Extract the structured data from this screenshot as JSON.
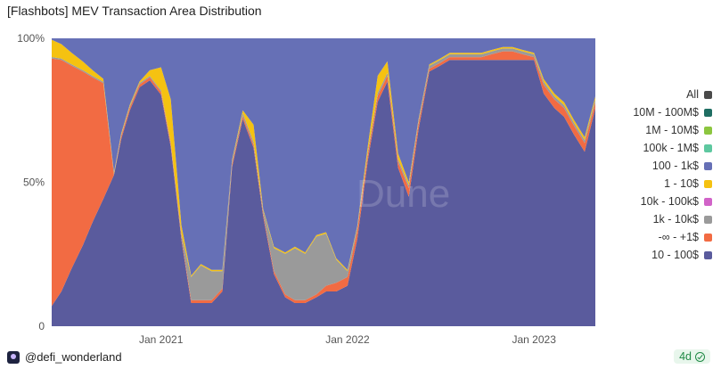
{
  "chart_data": {
    "type": "area",
    "stacked": true,
    "normalized": true,
    "title": "[Flashbots] MEV Transaction Area Distribution",
    "xlabel": "",
    "ylabel": "",
    "x_ticks": [
      "Jan 2021",
      "Jan 2022",
      "Jan 2023"
    ],
    "y_ticks": [
      "0",
      "50%",
      "100%"
    ],
    "ylim": [
      0,
      100
    ],
    "legend_position": "right",
    "x": [
      "2020-06-01",
      "2020-06-20",
      "2020-07-10",
      "2020-08-01",
      "2020-08-20",
      "2020-09-10",
      "2020-10-01",
      "2020-10-15",
      "2020-11-01",
      "2020-11-20",
      "2020-12-10",
      "2021-01-01",
      "2021-01-20",
      "2021-02-10",
      "2021-03-01",
      "2021-03-20",
      "2021-04-10",
      "2021-05-01",
      "2021-05-20",
      "2021-06-10",
      "2021-07-01",
      "2021-07-20",
      "2021-08-10",
      "2021-09-01",
      "2021-09-20",
      "2021-10-10",
      "2021-11-01",
      "2021-11-20",
      "2021-12-10",
      "2022-01-01",
      "2022-01-20",
      "2022-02-10",
      "2022-03-01",
      "2022-03-20",
      "2022-04-10",
      "2022-05-01",
      "2022-05-20",
      "2022-06-10",
      "2022-07-01",
      "2022-07-20",
      "2022-08-10",
      "2022-09-01",
      "2022-09-20",
      "2022-10-10",
      "2022-11-01",
      "2022-11-20",
      "2022-12-10",
      "2023-01-01",
      "2023-01-20",
      "2023-02-10",
      "2023-03-01",
      "2023-03-20",
      "2023-04-10",
      "2023-05-01"
    ],
    "series": [
      {
        "name": "10 - 100$",
        "color": "#5a5b9d",
        "values": [
          7,
          12,
          20,
          28,
          36,
          44,
          52,
          65,
          75,
          83,
          85,
          80,
          62,
          30,
          8,
          8,
          8,
          12,
          55,
          72,
          62,
          38,
          18,
          10,
          8,
          8,
          10,
          12,
          12,
          14,
          30,
          58,
          78,
          85,
          55,
          45,
          68,
          88,
          90,
          92,
          92,
          92,
          92,
          92,
          92,
          92,
          92,
          92,
          80,
          75,
          72,
          66,
          60,
          75
        ]
      },
      {
        "name": "-∞ - +1$",
        "color": "#f26b43",
        "values": [
          86,
          80,
          70,
          60,
          50,
          40,
          0,
          1,
          1,
          1,
          1,
          1,
          1,
          1,
          1,
          1,
          1,
          1,
          1,
          1,
          1,
          1,
          1,
          1,
          1,
          1,
          1,
          2,
          3,
          3,
          3,
          2,
          2,
          2,
          2,
          3,
          2,
          1,
          1,
          1,
          1,
          1,
          1,
          2,
          3,
          3,
          2,
          1,
          3,
          3,
          3,
          3,
          3,
          2
        ]
      },
      {
        "name": "1k - 10k$",
        "color": "#9a9a9a",
        "values": [
          0.5,
          0.5,
          0.5,
          0.5,
          0.5,
          0.5,
          0.5,
          0.5,
          0.5,
          0.5,
          0.5,
          0.5,
          0.5,
          1,
          8,
          12,
          10,
          6,
          1,
          1,
          1,
          1,
          8,
          14,
          18,
          16,
          20,
          18,
          8,
          2,
          1,
          1,
          1,
          1,
          1,
          1,
          1,
          1,
          1,
          1,
          1,
          1,
          1,
          1,
          1,
          1,
          1,
          1,
          1,
          1,
          1,
          1,
          1,
          1
        ]
      },
      {
        "name": "1 - 10$",
        "color": "#f5c211",
        "values": [
          6,
          5,
          4,
          3,
          2,
          1,
          0.5,
          0.5,
          0.5,
          0.5,
          2,
          8,
          15,
          3,
          0.5,
          0.5,
          0.5,
          0.5,
          0.5,
          1,
          6,
          0.5,
          0.5,
          0.5,
          0.5,
          0.5,
          0.5,
          0.5,
          0.5,
          0.5,
          0.5,
          2,
          6,
          4,
          2,
          1,
          0.5,
          0.5,
          0.5,
          0.5,
          0.5,
          0.5,
          0.5,
          0.5,
          0.5,
          0.5,
          0.5,
          0.5,
          1,
          1,
          1,
          1,
          1,
          1
        ]
      },
      {
        "name": "100 - 1k$",
        "color": "#6670b6",
        "values": [
          0.5,
          2,
          5,
          8,
          11,
          14,
          46,
          33,
          23,
          15,
          11,
          10,
          21,
          65,
          82,
          78,
          80,
          80,
          42,
          25,
          30,
          59,
          72,
          74,
          72,
          74,
          68,
          67,
          76,
          80,
          65,
          37,
          13,
          8,
          40,
          50,
          28,
          9,
          7,
          5,
          5,
          5,
          5,
          4,
          3,
          3,
          4,
          5,
          14,
          19,
          22,
          28,
          34,
          20
        ]
      },
      {
        "name": "10k - 100k$",
        "color": "#d163c8",
        "values": [
          0,
          0,
          0,
          0,
          0,
          0,
          0,
          0,
          0,
          0,
          0,
          0,
          0,
          0,
          0,
          0,
          0,
          0,
          0,
          0,
          0,
          0,
          0,
          0,
          0,
          0,
          0,
          0,
          0,
          0,
          0,
          0,
          0,
          0,
          0,
          0,
          0,
          0,
          0,
          0,
          0,
          0,
          0,
          0,
          0,
          0,
          0,
          0,
          0,
          0,
          0,
          0,
          0,
          0
        ]
      },
      {
        "name": "100k - 1M$",
        "color": "#5ec8a0",
        "values": [
          0,
          0,
          0,
          0,
          0,
          0,
          0,
          0,
          0,
          0,
          0,
          0,
          0,
          0,
          0,
          0,
          0,
          0,
          0,
          0,
          0,
          0,
          0,
          0,
          0,
          0,
          0,
          0,
          0,
          0,
          0,
          0,
          0,
          0,
          0,
          0,
          0,
          0,
          0,
          0,
          0,
          0,
          0,
          0,
          0,
          0,
          0,
          0,
          0,
          0,
          0,
          0,
          0,
          0
        ]
      },
      {
        "name": "1M - 10M$",
        "color": "#8cc63f",
        "values": [
          0,
          0,
          0,
          0,
          0,
          0,
          0,
          0,
          0,
          0,
          0,
          0,
          0,
          0,
          0,
          0,
          0,
          0,
          0,
          0,
          0,
          0,
          0,
          0,
          0,
          0,
          0,
          0,
          0,
          0,
          0,
          0,
          0,
          0,
          0,
          0,
          0,
          0,
          0,
          0,
          0,
          0,
          0,
          0,
          0,
          0,
          0,
          0,
          0,
          0,
          0,
          0,
          0,
          0
        ]
      },
      {
        "name": "10M - 100M$",
        "color": "#1f6e63",
        "values": [
          0,
          0,
          0,
          0,
          0,
          0,
          0,
          0,
          0,
          0,
          0,
          0,
          0,
          0,
          0,
          0,
          0,
          0,
          0,
          0,
          0,
          0,
          0,
          0,
          0,
          0,
          0,
          0,
          0,
          0,
          0,
          0,
          0,
          0,
          0,
          0,
          0,
          0,
          0,
          0,
          0,
          0,
          0,
          0,
          0,
          0,
          0,
          0,
          0,
          0,
          0,
          0,
          0,
          0
        ]
      },
      {
        "name": "All",
        "color": "#4a4a4a",
        "values": [
          0,
          0,
          0,
          0,
          0,
          0,
          0,
          0,
          0,
          0,
          0,
          0,
          0,
          0,
          0,
          0,
          0,
          0,
          0,
          0,
          0,
          0,
          0,
          0,
          0,
          0,
          0,
          0,
          0,
          0,
          0,
          0,
          0,
          0,
          0,
          0,
          0,
          0,
          0,
          0,
          0,
          0,
          0,
          0,
          0,
          0,
          0,
          0,
          0,
          0,
          0,
          0,
          0,
          0
        ]
      }
    ],
    "legend_order": [
      "All",
      "10M - 100M$",
      "1M - 10M$",
      "100k - 1M$",
      "100 - 1k$",
      "1 - 10$",
      "10k - 100k$",
      "1k - 10k$",
      "-∞ - +1$",
      "10 - 100$"
    ],
    "watermark": "Dune"
  },
  "footer": {
    "author": "@defi_wonderland",
    "age_badge": "4d"
  }
}
